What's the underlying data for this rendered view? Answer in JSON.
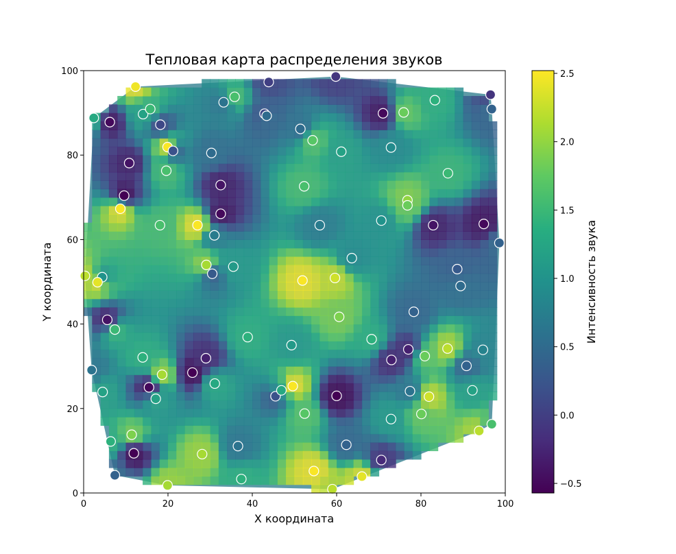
{
  "chart_data": {
    "type": "heatmap",
    "title": "Тепловая карта распределения звуков",
    "xlabel": "X координата",
    "ylabel": "Y координата",
    "xlim": [
      0,
      100
    ],
    "ylim": [
      0,
      100
    ],
    "x_ticks": [
      "0",
      "20",
      "40",
      "60",
      "80",
      "100"
    ],
    "y_ticks": [
      "0",
      "20",
      "40",
      "60",
      "80",
      "100"
    ],
    "colorbar": {
      "label": "Интенсивность звука",
      "range": [
        -0.57,
        2.52
      ],
      "ticks": [
        "−0.5",
        "0.0",
        "0.5",
        "1.0",
        "1.5",
        "2.0",
        "2.5"
      ],
      "tick_values": [
        -0.5,
        0.0,
        0.5,
        1.0,
        1.5,
        2.0,
        2.5
      ],
      "colormap": "viridis"
    },
    "grid": false,
    "points": [
      {
        "x": 12.3,
        "y": 96.2,
        "v": 2.45
      },
      {
        "x": 43.9,
        "y": 97.3,
        "v": 0.0
      },
      {
        "x": 59.8,
        "y": 98.6,
        "v": -0.1
      },
      {
        "x": 96.5,
        "y": 94.3,
        "v": -0.1
      },
      {
        "x": 96.8,
        "y": 90.9,
        "v": 0.4
      },
      {
        "x": 2.4,
        "y": 88.8,
        "v": 1.3
      },
      {
        "x": 6.2,
        "y": 87.8,
        "v": -0.5
      },
      {
        "x": 14.1,
        "y": 89.7,
        "v": 1.2
      },
      {
        "x": 15.8,
        "y": 90.9,
        "v": 1.5
      },
      {
        "x": 18.2,
        "y": 87.2,
        "v": 0.1
      },
      {
        "x": 33.2,
        "y": 92.5,
        "v": 0.6
      },
      {
        "x": 35.8,
        "y": 93.8,
        "v": 1.6
      },
      {
        "x": 42.9,
        "y": 89.8,
        "v": 0.1
      },
      {
        "x": 43.4,
        "y": 89.3,
        "v": 0.5
      },
      {
        "x": 51.4,
        "y": 86.2,
        "v": 0.5
      },
      {
        "x": 71.0,
        "y": 89.9,
        "v": -0.5
      },
      {
        "x": 75.9,
        "y": 90.1,
        "v": 1.8
      },
      {
        "x": 83.3,
        "y": 93.0,
        "v": 1.4
      },
      {
        "x": 19.9,
        "y": 81.9,
        "v": 2.5
      },
      {
        "x": 21.2,
        "y": 81.0,
        "v": 0.2
      },
      {
        "x": 30.3,
        "y": 80.5,
        "v": 0.5
      },
      {
        "x": 54.3,
        "y": 83.5,
        "v": 1.7
      },
      {
        "x": 61.1,
        "y": 80.8,
        "v": 1.2
      },
      {
        "x": 72.9,
        "y": 81.8,
        "v": 0.9
      },
      {
        "x": 10.8,
        "y": 78.1,
        "v": -0.4
      },
      {
        "x": 19.6,
        "y": 76.3,
        "v": 1.6
      },
      {
        "x": 86.4,
        "y": 75.7,
        "v": 1.5
      },
      {
        "x": 32.5,
        "y": 72.9,
        "v": -0.4
      },
      {
        "x": 52.3,
        "y": 72.6,
        "v": 1.6
      },
      {
        "x": 9.6,
        "y": 70.4,
        "v": -0.6
      },
      {
        "x": 8.7,
        "y": 67.3,
        "v": 2.5
      },
      {
        "x": 76.8,
        "y": 69.3,
        "v": 2.0
      },
      {
        "x": 76.8,
        "y": 68.1,
        "v": 1.8
      },
      {
        "x": 32.5,
        "y": 66.1,
        "v": -0.5
      },
      {
        "x": 18.1,
        "y": 63.4,
        "v": 1.6
      },
      {
        "x": 27.0,
        "y": 63.4,
        "v": 2.5
      },
      {
        "x": 56.0,
        "y": 63.4,
        "v": 0.7
      },
      {
        "x": 70.6,
        "y": 64.5,
        "v": 1.0
      },
      {
        "x": 82.9,
        "y": 63.4,
        "v": -0.4
      },
      {
        "x": 94.9,
        "y": 63.7,
        "v": -0.5
      },
      {
        "x": 31.0,
        "y": 61.0,
        "v": 0.7
      },
      {
        "x": 98.6,
        "y": 59.2,
        "v": 0.4
      },
      {
        "x": 63.6,
        "y": 55.6,
        "v": 0.9
      },
      {
        "x": 29.1,
        "y": 54.0,
        "v": 2.1
      },
      {
        "x": 35.5,
        "y": 53.6,
        "v": 1.1
      },
      {
        "x": 88.6,
        "y": 53.0,
        "v": 0.3
      },
      {
        "x": 30.5,
        "y": 51.9,
        "v": 0.3
      },
      {
        "x": 0.3,
        "y": 51.4,
        "v": 2.2
      },
      {
        "x": 4.4,
        "y": 51.1,
        "v": 1.0
      },
      {
        "x": 3.3,
        "y": 49.9,
        "v": 2.4
      },
      {
        "x": 51.9,
        "y": 50.3,
        "v": 2.5
      },
      {
        "x": 59.6,
        "y": 50.9,
        "v": 2.3
      },
      {
        "x": 89.4,
        "y": 49.0,
        "v": 0.5
      },
      {
        "x": 78.3,
        "y": 42.9,
        "v": 0.4
      },
      {
        "x": 5.6,
        "y": 41.0,
        "v": -0.4
      },
      {
        "x": 60.6,
        "y": 41.7,
        "v": 1.9
      },
      {
        "x": 7.4,
        "y": 38.7,
        "v": 1.5
      },
      {
        "x": 38.9,
        "y": 36.9,
        "v": 1.4
      },
      {
        "x": 68.3,
        "y": 36.4,
        "v": 1.4
      },
      {
        "x": 49.3,
        "y": 35.0,
        "v": 1.1
      },
      {
        "x": 77.0,
        "y": 34.0,
        "v": -0.3
      },
      {
        "x": 86.3,
        "y": 34.2,
        "v": 2.2
      },
      {
        "x": 94.7,
        "y": 33.9,
        "v": 0.8
      },
      {
        "x": 14.0,
        "y": 32.1,
        "v": 1.4
      },
      {
        "x": 29.0,
        "y": 31.9,
        "v": -0.3
      },
      {
        "x": 73.0,
        "y": 31.5,
        "v": -0.3
      },
      {
        "x": 80.9,
        "y": 32.4,
        "v": 1.8
      },
      {
        "x": 90.8,
        "y": 30.1,
        "v": 0.4
      },
      {
        "x": 1.9,
        "y": 29.1,
        "v": 0.6
      },
      {
        "x": 18.6,
        "y": 28.0,
        "v": 2.1
      },
      {
        "x": 25.8,
        "y": 28.5,
        "v": -0.6
      },
      {
        "x": 31.1,
        "y": 25.9,
        "v": 1.3
      },
      {
        "x": 15.5,
        "y": 25.0,
        "v": -0.5
      },
      {
        "x": 4.5,
        "y": 23.9,
        "v": 1.2
      },
      {
        "x": 45.5,
        "y": 22.9,
        "v": 0.2
      },
      {
        "x": 46.9,
        "y": 24.3,
        "v": 1.3
      },
      {
        "x": 49.6,
        "y": 25.3,
        "v": 2.5
      },
      {
        "x": 60.0,
        "y": 23.0,
        "v": -0.6
      },
      {
        "x": 77.4,
        "y": 24.1,
        "v": 0.6
      },
      {
        "x": 81.9,
        "y": 22.8,
        "v": 2.3
      },
      {
        "x": 92.2,
        "y": 24.3,
        "v": 1.2
      },
      {
        "x": 17.1,
        "y": 22.3,
        "v": 1.2
      },
      {
        "x": 52.4,
        "y": 18.8,
        "v": 1.7
      },
      {
        "x": 80.1,
        "y": 18.7,
        "v": 1.8
      },
      {
        "x": 72.9,
        "y": 17.5,
        "v": 1.1
      },
      {
        "x": 96.8,
        "y": 16.3,
        "v": 1.6
      },
      {
        "x": 93.8,
        "y": 14.7,
        "v": 2.2
      },
      {
        "x": 11.4,
        "y": 13.8,
        "v": 1.9
      },
      {
        "x": 6.4,
        "y": 12.2,
        "v": 1.4
      },
      {
        "x": 36.6,
        "y": 11.1,
        "v": 0.6
      },
      {
        "x": 62.3,
        "y": 11.4,
        "v": 0.4
      },
      {
        "x": 11.9,
        "y": 9.4,
        "v": -0.6
      },
      {
        "x": 28.1,
        "y": 9.2,
        "v": 2.1
      },
      {
        "x": 70.6,
        "y": 7.8,
        "v": -0.2
      },
      {
        "x": 54.6,
        "y": 5.2,
        "v": 2.5
      },
      {
        "x": 7.4,
        "y": 4.2,
        "v": 0.4
      },
      {
        "x": 37.4,
        "y": 3.3,
        "v": 1.4
      },
      {
        "x": 66.0,
        "y": 3.9,
        "v": 2.4
      },
      {
        "x": 19.9,
        "y": 1.8,
        "v": 2.1
      },
      {
        "x": 59.0,
        "y": 0.9,
        "v": 2.2
      }
    ]
  }
}
